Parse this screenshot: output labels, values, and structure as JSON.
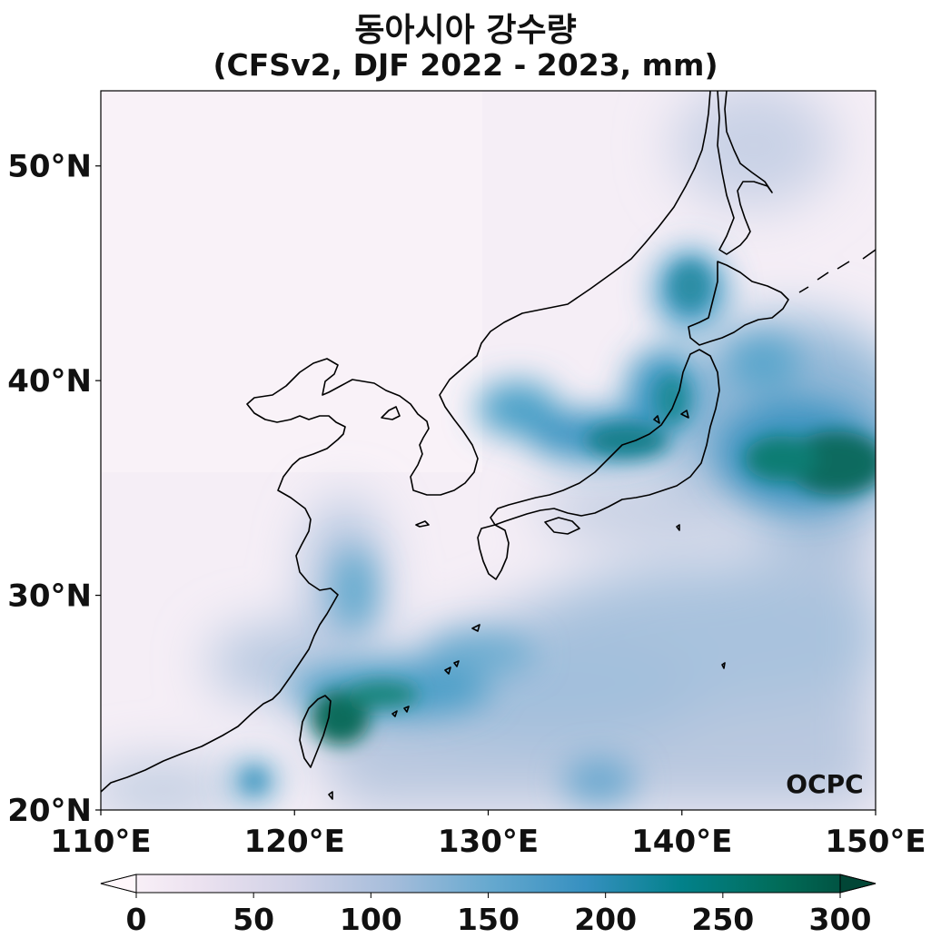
{
  "title": {
    "line1": "동아시아 강수량",
    "line2": "(CFSv2, DJF 2022 - 2023, mm)"
  },
  "map": {
    "lon_range": [
      110,
      150
    ],
    "lat_range": [
      20,
      53.5
    ],
    "lat_ticks": [
      {
        "value": 50,
        "label": "50°N"
      },
      {
        "value": 40,
        "label": "40°N"
      },
      {
        "value": 30,
        "label": "30°N"
      },
      {
        "value": 20,
        "label": "20°N"
      }
    ],
    "lon_ticks": [
      {
        "value": 110,
        "label": "110°E"
      },
      {
        "value": 120,
        "label": "120°E"
      },
      {
        "value": 130,
        "label": "130°E"
      },
      {
        "value": 140,
        "label": "140°E"
      },
      {
        "value": 150,
        "label": "150°E"
      }
    ],
    "watermark": "OCPC"
  },
  "colorbar": {
    "min": 0,
    "max": 300,
    "ticks": [
      {
        "value": 0,
        "label": "0"
      },
      {
        "value": 50,
        "label": "50"
      },
      {
        "value": 100,
        "label": "100"
      },
      {
        "value": 150,
        "label": "150"
      },
      {
        "value": 200,
        "label": "200"
      },
      {
        "value": 250,
        "label": "250"
      },
      {
        "value": 300,
        "label": "300"
      }
    ],
    "colors": [
      "#fff7fb",
      "#ece2f0",
      "#d0d1e6",
      "#a6bddb",
      "#67a9cf",
      "#3690c0",
      "#02818a",
      "#016c59",
      "#014636"
    ]
  }
}
